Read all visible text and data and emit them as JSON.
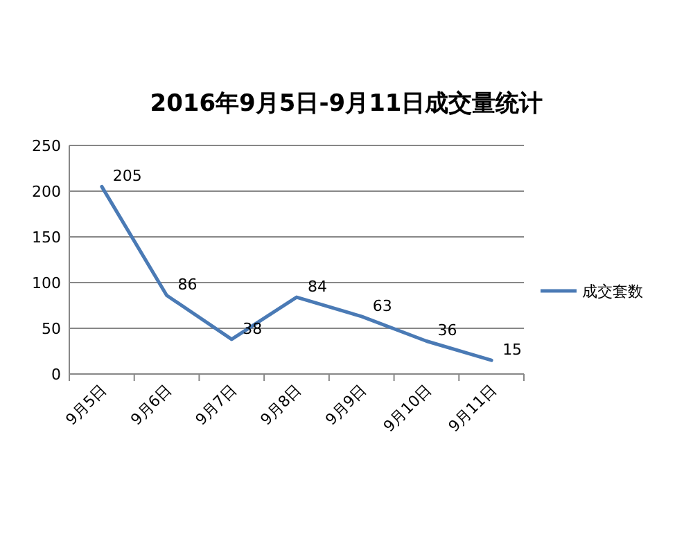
{
  "chart_data": {
    "type": "line",
    "title": "2016年9月5日-9月11日成交量统计",
    "categories": [
      "9月5日",
      "9月6日",
      "9月7日",
      "9月8日",
      "9月9日",
      "9月10日",
      "9月11日"
    ],
    "series": [
      {
        "name": "成交套数",
        "color": "#4a7ab5",
        "values": [
          205,
          86,
          38,
          84,
          63,
          36,
          15
        ]
      }
    ],
    "ylim": [
      0,
      250
    ],
    "yticks": [
      0,
      50,
      100,
      150,
      200,
      250
    ],
    "grid": "y",
    "legend": "right",
    "data_labels": true,
    "marker": "none",
    "line_style": "solid"
  }
}
